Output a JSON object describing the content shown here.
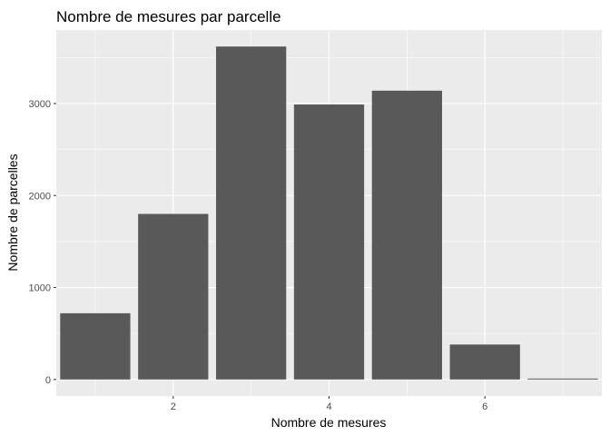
{
  "chart_data": {
    "type": "bar",
    "title": "Nombre de mesures par parcelle",
    "xlabel": "Nombre de mesures",
    "ylabel": "Nombre de parcelles",
    "categories": [
      1,
      2,
      3,
      4,
      5,
      6,
      7
    ],
    "values": [
      720,
      1800,
      3620,
      2990,
      3140,
      380,
      10
    ],
    "xlim": [
      0.5,
      7.5
    ],
    "ylim": [
      -180,
      3800
    ],
    "x_ticks": [
      2,
      4,
      6
    ],
    "y_ticks": [
      0,
      1000,
      2000,
      3000
    ],
    "grid": true,
    "legend": "none",
    "colors": {
      "bar": "#595959",
      "panel": "#ebebeb",
      "grid_major": "#ffffff",
      "tick_label": "#4d4d4d",
      "tick_mark": "#333333"
    }
  }
}
